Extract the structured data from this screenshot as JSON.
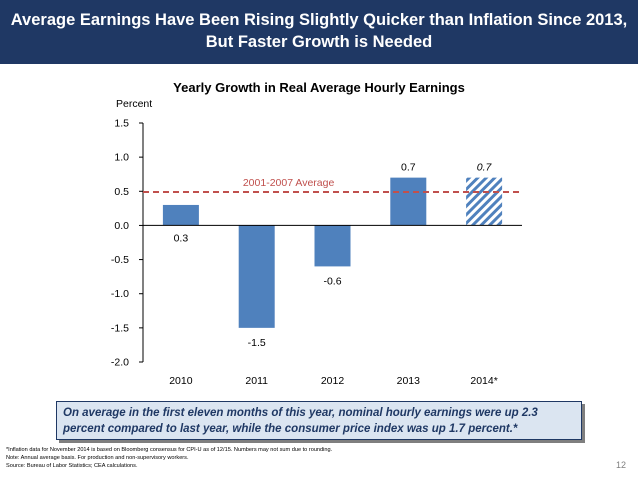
{
  "header": {
    "line1": "Average Earnings Have Been Rising Slightly Quicker than Inflation Since 2013,",
    "line2": "But Faster Growth is Needed"
  },
  "callout": {
    "text": "On average in the first eleven months of this year, nominal hourly earnings were up 2.3 percent compared to last year, while the consumer price index was up 1.7 percent.*"
  },
  "notes": [
    "*Inflation data for November 2014 is based on Bloomberg consensus for CPI-U as of 12/15. Numbers may not sum due to rounding.",
    "Note: Annual average basis. For production and non-supervisory workers.",
    "Source: Bureau of Labor Statistics; CEA calculations."
  ],
  "page_number": "12",
  "colors": {
    "header_bg": "#1f3864",
    "bar": "#4f81bd",
    "average_line": "#c0504d",
    "callout_bg": "#dbe5f1"
  },
  "chart_data": {
    "type": "bar",
    "title": "Yearly Growth in Real Average Hourly Earnings",
    "ylabel": "Percent",
    "xlabel": "",
    "categories": [
      "2010",
      "2011",
      "2012",
      "2013",
      "2014*"
    ],
    "values": [
      0.3,
      -1.5,
      -0.6,
      0.7,
      0.7
    ],
    "value_labels": [
      "0.3",
      "-1.5",
      "-0.6",
      "0.7",
      "0.7"
    ],
    "hatched": [
      false,
      false,
      false,
      false,
      true
    ],
    "ylim": [
      -2.0,
      1.5
    ],
    "yticks": [
      1.5,
      1.0,
      0.5,
      0.0,
      -0.5,
      -1.0,
      -1.5,
      -2.0
    ],
    "ytick_labels": [
      "1.5",
      "1.0",
      "0.5",
      "0.0",
      "-0.5",
      "-1.0",
      "-1.5",
      "-2.0"
    ],
    "reference_line": {
      "label": "2001-2007 Average",
      "value": 0.49
    },
    "grid": false,
    "legend": "none"
  }
}
